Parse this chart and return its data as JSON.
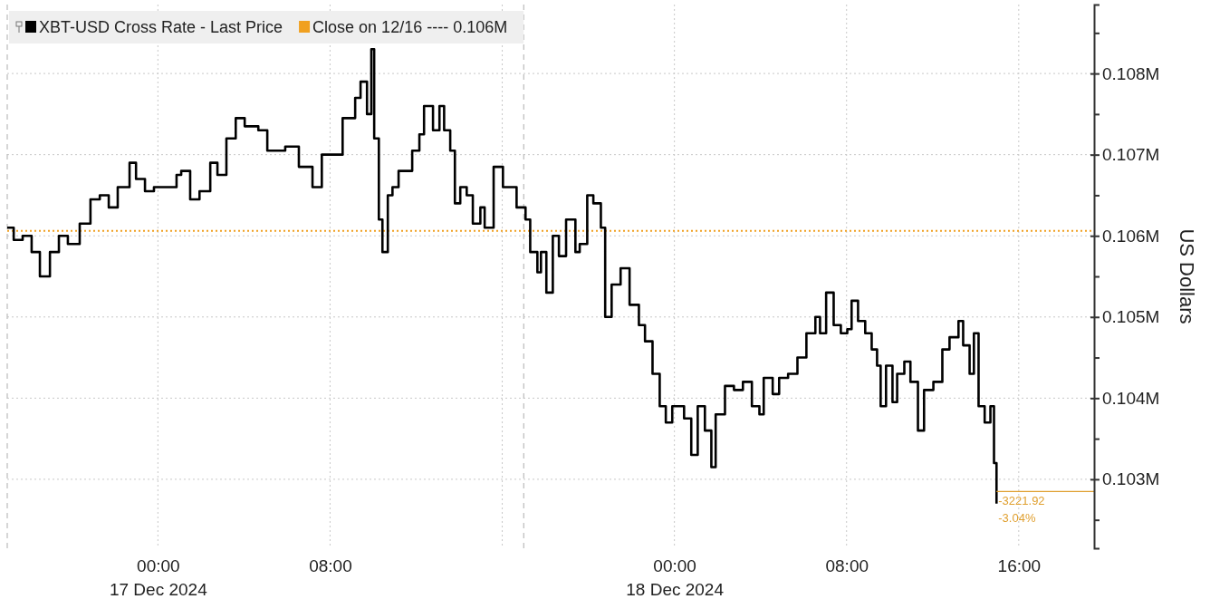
{
  "chart_data": {
    "type": "step",
    "ylabel": "US Dollars",
    "x": [
      "2024-12-16T17:00",
      "2024-12-16T17:18",
      "2024-12-16T17:43",
      "2024-12-16T18:08",
      "2024-12-16T18:31",
      "2024-12-16T18:59",
      "2024-12-16T19:24",
      "2024-12-16T19:49",
      "2024-12-16T20:22",
      "2024-12-16T20:52",
      "2024-12-16T21:18",
      "2024-12-16T21:43",
      "2024-12-16T22:08",
      "2024-12-16T22:41",
      "2024-12-16T22:59",
      "2024-12-16T23:24",
      "2024-12-16T23:49",
      "2024-12-17T00:14",
      "2024-12-17T00:52",
      "2024-12-17T01:05",
      "2024-12-17T01:30",
      "2024-12-17T01:56",
      "2024-12-17T02:26",
      "2024-12-17T02:46",
      "2024-12-17T03:11",
      "2024-12-17T03:37",
      "2024-12-17T04:02",
      "2024-12-17T04:40",
      "2024-12-17T05:05",
      "2024-12-17T05:30",
      "2024-12-17T05:55",
      "2024-12-17T06:33",
      "2024-12-17T07:11",
      "2024-12-17T07:37",
      "2024-12-17T08:14",
      "2024-12-17T08:35",
      "2024-12-17T09:10",
      "2024-12-17T09:25",
      "2024-12-17T09:43",
      "2024-12-17T09:55",
      "2024-12-17T10:03",
      "2024-12-17T10:16",
      "2024-12-17T10:26",
      "2024-12-17T10:41",
      "2024-12-17T10:54",
      "2024-12-17T11:11",
      "2024-12-17T11:29",
      "2024-12-17T11:49",
      "2024-12-17T12:09",
      "2024-12-17T12:22",
      "2024-12-17T12:47",
      "2024-12-17T13:05",
      "2024-12-17T13:18",
      "2024-12-17T13:35",
      "2024-12-17T13:48",
      "2024-12-17T14:03",
      "2024-12-17T14:21",
      "2024-12-17T14:38",
      "2024-12-17T14:59",
      "2024-12-17T15:11",
      "2024-12-17T15:36",
      "2024-12-17T16:02",
      "2024-12-17T16:27",
      "2024-12-17T16:40",
      "2024-12-17T17:05",
      "2024-12-17T17:18",
      "2024-12-17T17:38",
      "2024-12-17T17:48",
      "2024-12-17T18:03",
      "2024-12-17T18:21",
      "2024-12-17T18:38",
      "2024-12-17T18:58",
      "2024-12-17T19:24",
      "2024-12-17T19:36",
      "2024-12-17T19:57",
      "2024-12-17T20:14",
      "2024-12-17T20:35",
      "2024-12-17T20:47",
      "2024-12-17T21:05",
      "2024-12-17T21:30",
      "2024-12-17T21:55",
      "2024-12-17T22:21",
      "2024-12-17T22:38",
      "2024-12-17T22:59",
      "2024-12-17T23:19",
      "2024-12-17T23:36",
      "2024-12-17T23:54",
      "2024-12-18T00:27",
      "2024-12-18T00:47",
      "2024-12-18T01:05",
      "2024-12-18T01:25",
      "2024-12-18T01:43",
      "2024-12-18T01:55",
      "2024-12-18T02:21",
      "2024-12-18T02:46",
      "2024-12-18T03:11",
      "2024-12-18T03:36",
      "2024-12-18T03:57",
      "2024-12-18T04:09",
      "2024-12-18T04:34",
      "2024-12-18T04:52",
      "2024-12-18T05:17",
      "2024-12-18T05:43",
      "2024-12-18T06:08",
      "2024-12-18T06:33",
      "2024-12-18T06:46",
      "2024-12-18T07:03",
      "2024-12-18T07:24",
      "2024-12-18T07:44",
      "2024-12-18T08:02",
      "2024-12-18T08:14",
      "2024-12-18T08:32",
      "2024-12-18T08:52",
      "2024-12-18T09:10",
      "2024-12-18T09:25",
      "2024-12-18T09:35",
      "2024-12-18T09:50",
      "2024-12-18T10:08",
      "2024-12-18T10:21",
      "2024-12-18T10:41",
      "2024-12-18T10:58",
      "2024-12-18T11:19",
      "2024-12-18T11:36",
      "2024-12-18T12:02",
      "2024-12-18T12:27",
      "2024-12-18T12:47",
      "2024-12-18T13:12",
      "2024-12-18T13:25",
      "2024-12-18T13:43",
      "2024-12-18T13:55",
      "2024-12-18T14:08",
      "2024-12-18T14:25",
      "2024-12-18T14:41",
      "2024-12-18T14:51",
      "2024-12-18T14:58"
    ],
    "series": [
      {
        "name": "XBT-USD Cross Rate - Last Price",
        "color": "#000000",
        "values": [
          106100,
          105950,
          106000,
          105800,
          105500,
          105800,
          106000,
          105900,
          106150,
          106450,
          106500,
          106350,
          106600,
          106900,
          106700,
          106550,
          106600,
          106600,
          106750,
          106800,
          106450,
          106550,
          106900,
          106750,
          107200,
          107450,
          107350,
          107300,
          107050,
          107050,
          107100,
          106850,
          106600,
          107000,
          107000,
          107450,
          107700,
          107900,
          107500,
          108300,
          107200,
          106200,
          105800,
          106500,
          106600,
          106800,
          106800,
          107050,
          107250,
          107600,
          107300,
          107600,
          107300,
          107050,
          106400,
          106600,
          106500,
          106150,
          106350,
          106100,
          106850,
          106600,
          106600,
          106350,
          106200,
          105800,
          105550,
          105800,
          105300,
          106000,
          105750,
          106200,
          105800,
          105900,
          106500,
          106400,
          106100,
          105000,
          105400,
          105600,
          105150,
          104900,
          104700,
          104300,
          103900,
          103700,
          103900,
          103750,
          103300,
          103900,
          103600,
          103150,
          103800,
          104150,
          104100,
          104200,
          103900,
          103800,
          104250,
          104050,
          104250,
          104300,
          104500,
          104800,
          105000,
          104800,
          105300,
          104900,
          104800,
          104850,
          105200,
          104950,
          104800,
          104600,
          104400,
          103900,
          104400,
          103950,
          104300,
          104450,
          104200,
          103600,
          104100,
          104200,
          104600,
          104750,
          104950,
          104650,
          104300,
          104800,
          103900,
          103700,
          103900,
          103200,
          102700
        ]
      }
    ],
    "xlim": [
      "2024-12-16T17:00",
      "2024-12-18T19:30"
    ],
    "xticks": [
      {
        "value": "2024-12-17T00:00",
        "label": "00:00\n17 Dec 2024"
      },
      {
        "value": "2024-12-17T08:00",
        "label": "08:00"
      },
      {
        "value": "2024-12-17T16:00",
        "label": null
      },
      {
        "value": "2024-12-18T00:00",
        "label": "00:00\n18 Dec 2024"
      },
      {
        "value": "2024-12-18T08:00",
        "label": "08:00"
      },
      {
        "value": "2024-12-18T16:00",
        "label": "16:00"
      }
    ],
    "ylim": [
      102150,
      108850
    ],
    "yticks": [
      {
        "value": 102500,
        "label": null
      },
      {
        "value": 103000,
        "label": "0.103M"
      },
      {
        "value": 103500,
        "label": null
      },
      {
        "value": 104000,
        "label": "0.104M"
      },
      {
        "value": 104500,
        "label": null
      },
      {
        "value": 105000,
        "label": "0.105M"
      },
      {
        "value": 105500,
        "label": null
      },
      {
        "value": 106000,
        "label": "0.106M"
      },
      {
        "value": 106500,
        "label": null
      },
      {
        "value": 107000,
        "label": "0.107M"
      },
      {
        "value": 107500,
        "label": null
      },
      {
        "value": 108000,
        "label": "0.108M"
      },
      {
        "value": 108500,
        "label": null
      }
    ],
    "ref_lines": [
      {
        "axis": "y",
        "value": 106060,
        "label": "Close on 12/16 ---- 0.106M",
        "color": "#f0a020",
        "line_style": "dotted"
      },
      {
        "axis": "x",
        "value": "2024-12-16T17:00",
        "label": null,
        "color": "#bbbbbb",
        "line_style": "dashed"
      },
      {
        "axis": "x",
        "value": "2024-12-17T17:00",
        "label": null,
        "color": "#bbbbbb",
        "line_style": "dashed"
      }
    ],
    "annotations": [
      {
        "text": "-3221.92",
        "x": "2024-12-18T14:58",
        "y": 102850
      },
      {
        "text": "-3.04%",
        "x": "2024-12-18T14:58",
        "y": 102850
      }
    ],
    "grid": true,
    "legend": "top left",
    "line_style": "solid",
    "marker": "none"
  }
}
